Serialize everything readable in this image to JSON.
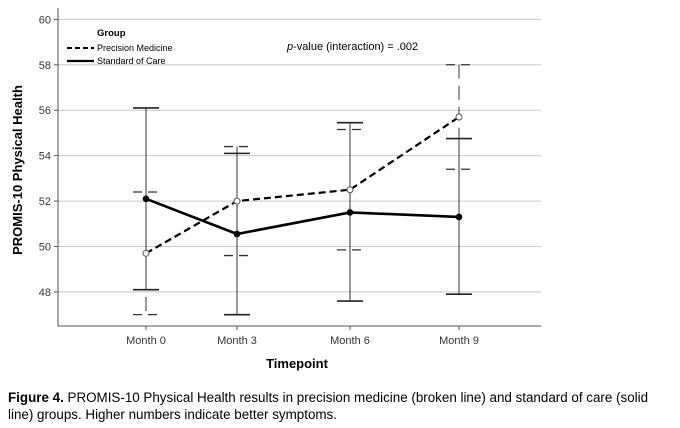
{
  "chart_data": {
    "type": "line",
    "xlabel": "Timepoint",
    "ylabel": "PROMIS-10 Physical Health",
    "categories": [
      "Month 0",
      "Month 3",
      "Month 6",
      "Month 9"
    ],
    "ylim": [
      46.5,
      60.5
    ],
    "yticks": [
      48,
      50,
      52,
      54,
      56,
      58,
      60
    ],
    "grid": "horizontal",
    "legend": {
      "title": "Group",
      "position": "top-left"
    },
    "annotation": {
      "italic": "p",
      "text": "-value (interaction) = .002"
    },
    "series": [
      {
        "name": "Precision Medicine",
        "style": "dashed",
        "marker": "open-circle",
        "color": "#000000",
        "values": [
          49.7,
          52.0,
          52.5,
          55.7
        ],
        "error_low": [
          47.0,
          49.6,
          49.85,
          53.4
        ],
        "error_high": [
          52.4,
          54.4,
          55.15,
          58.0
        ]
      },
      {
        "name": "Standard of Care",
        "style": "solid",
        "marker": "filled-circle",
        "color": "#000000",
        "values": [
          52.1,
          50.55,
          51.5,
          51.3
        ],
        "error_low": [
          48.1,
          47.0,
          47.6,
          47.9
        ],
        "error_high": [
          56.1,
          54.1,
          55.45,
          54.75
        ]
      }
    ]
  },
  "caption": {
    "label": "Figure 4.",
    "text": " PROMIS-10 Physical Health results in precision medicine (broken line) and standard of care (solid line) groups. Higher numbers indicate better symptoms."
  }
}
